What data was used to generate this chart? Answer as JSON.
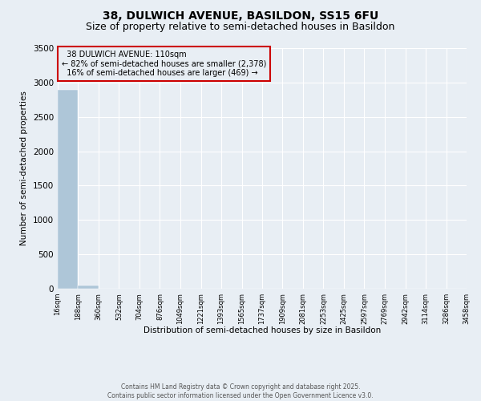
{
  "title_line1": "38, DULWICH AVENUE, BASILDON, SS15 6FU",
  "title_line2": "Size of property relative to semi-detached houses in Basildon",
  "xlabel": "Distribution of semi-detached houses by size in Basildon",
  "ylabel": "Number of semi-detached properties",
  "property_size": 110,
  "property_label": "38 DULWICH AVENUE: 110sqm",
  "pct_smaller": 82,
  "count_smaller": 2378,
  "pct_larger": 16,
  "count_larger": 469,
  "bar_color": "#aec6d8",
  "annotation_box_color": "#cc0000",
  "background_color": "#e8eef4",
  "ylim": [
    0,
    3500
  ],
  "yticks": [
    0,
    500,
    1000,
    1500,
    2000,
    2500,
    3000,
    3500
  ],
  "bin_edges": [
    16,
    188,
    360,
    532,
    704,
    876,
    1049,
    1221,
    1393,
    1565,
    1737,
    1909,
    2081,
    2253,
    2425,
    2597,
    2769,
    2942,
    3114,
    3286,
    3458
  ],
  "bin_counts": [
    2890,
    50,
    3,
    2,
    1,
    0,
    0,
    1,
    0,
    1,
    0,
    0,
    0,
    0,
    0,
    0,
    0,
    0,
    0,
    0
  ],
  "footer_text": "Contains HM Land Registry data © Crown copyright and database right 2025.\nContains public sector information licensed under the Open Government Licence v3.0.",
  "grid_color": "#ffffff",
  "tick_label_fontsize": 6,
  "title_fontsize1": 10,
  "title_fontsize2": 9,
  "ann_fontsize": 7,
  "ylabel_fontsize": 7.5,
  "xlabel_fontsize": 7.5,
  "ytick_fontsize": 7.5
}
